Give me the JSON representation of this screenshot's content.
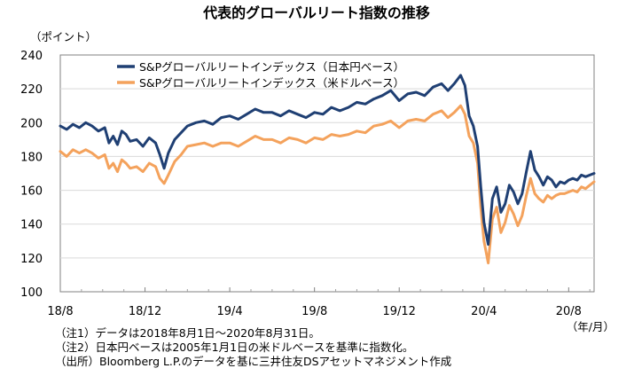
{
  "chart_data": {
    "type": "line",
    "title": "代表的グローバルリート指数の推移",
    "ylabel": "（ポイント）",
    "xlabel": "（年/月）",
    "ylim": [
      100,
      240
    ],
    "yticks": [
      100,
      120,
      140,
      160,
      180,
      200,
      220,
      240
    ],
    "xlim": [
      0,
      25.2
    ],
    "xticks": [
      {
        "label": "18/8",
        "month": 0
      },
      {
        "label": "18/12",
        "month": 4
      },
      {
        "label": "19/4",
        "month": 8
      },
      {
        "label": "19/8",
        "month": 12
      },
      {
        "label": "19/12",
        "month": 16
      },
      {
        "label": "20/4",
        "month": 20
      },
      {
        "label": "20/8",
        "month": 24
      }
    ],
    "legend_position": "top-left",
    "series": [
      {
        "name": "S&Pグローバルリートインデックス（日本円ベース）",
        "color": "#1f3f73",
        "month": [
          0,
          0.3,
          0.6,
          0.9,
          1.2,
          1.5,
          1.8,
          2.1,
          2.3,
          2.5,
          2.7,
          2.9,
          3.1,
          3.3,
          3.6,
          3.9,
          4.2,
          4.5,
          4.7,
          4.9,
          5.1,
          5.4,
          5.7,
          6.0,
          6.4,
          6.8,
          7.2,
          7.6,
          8.0,
          8.4,
          8.8,
          9.2,
          9.6,
          10.0,
          10.4,
          10.8,
          11.2,
          11.6,
          12.0,
          12.4,
          12.8,
          13.2,
          13.6,
          14.0,
          14.4,
          14.8,
          15.2,
          15.6,
          16.0,
          16.4,
          16.8,
          17.2,
          17.6,
          18.0,
          18.3,
          18.6,
          18.9,
          19.1,
          19.3,
          19.5,
          19.7,
          19.85,
          20.0,
          20.2,
          20.4,
          20.6,
          20.8,
          21.0,
          21.2,
          21.4,
          21.6,
          21.8,
          22.0,
          22.2,
          22.4,
          22.6,
          22.8,
          23.0,
          23.2,
          23.4,
          23.6,
          23.8,
          24.0,
          24.2,
          24.4,
          24.6,
          24.8,
          25.0,
          25.2
        ],
        "values": [
          198,
          196,
          199,
          197,
          200,
          198,
          195,
          197,
          188,
          192,
          187,
          195,
          193,
          189,
          190,
          186,
          191,
          188,
          181,
          173,
          182,
          190,
          194,
          198,
          200,
          201,
          199,
          203,
          204,
          202,
          205,
          208,
          206,
          206,
          204,
          207,
          205,
          203,
          206,
          205,
          209,
          207,
          209,
          212,
          211,
          214,
          216,
          219,
          213,
          217,
          218,
          216,
          221,
          223,
          219,
          223,
          228,
          222,
          204,
          198,
          186,
          162,
          141,
          128,
          155,
          162,
          147,
          152,
          163,
          159,
          152,
          158,
          171,
          183,
          172,
          168,
          163,
          168,
          166,
          162,
          165,
          164,
          166,
          167,
          166,
          169,
          168,
          169,
          170
        ]
      },
      {
        "name": "S&Pグローバルリートインデックス（米ドルベース）",
        "color": "#f4a25c",
        "month": [
          0,
          0.3,
          0.6,
          0.9,
          1.2,
          1.5,
          1.8,
          2.1,
          2.3,
          2.5,
          2.7,
          2.9,
          3.1,
          3.3,
          3.6,
          3.9,
          4.2,
          4.5,
          4.7,
          4.9,
          5.1,
          5.4,
          5.7,
          6.0,
          6.4,
          6.8,
          7.2,
          7.6,
          8.0,
          8.4,
          8.8,
          9.2,
          9.6,
          10.0,
          10.4,
          10.8,
          11.2,
          11.6,
          12.0,
          12.4,
          12.8,
          13.2,
          13.6,
          14.0,
          14.4,
          14.8,
          15.2,
          15.6,
          16.0,
          16.4,
          16.8,
          17.2,
          17.6,
          18.0,
          18.3,
          18.6,
          18.9,
          19.1,
          19.3,
          19.5,
          19.7,
          19.85,
          20.0,
          20.2,
          20.4,
          20.6,
          20.8,
          21.0,
          21.2,
          21.4,
          21.6,
          21.8,
          22.0,
          22.2,
          22.4,
          22.6,
          22.8,
          23.0,
          23.2,
          23.4,
          23.6,
          23.8,
          24.0,
          24.2,
          24.4,
          24.6,
          24.8,
          25.0,
          25.2
        ],
        "values": [
          183,
          180,
          184,
          182,
          184,
          182,
          179,
          181,
          173,
          176,
          171,
          178,
          176,
          173,
          174,
          171,
          176,
          174,
          167,
          164,
          169,
          177,
          181,
          186,
          187,
          188,
          186,
          188,
          188,
          186,
          189,
          192,
          190,
          190,
          188,
          191,
          190,
          188,
          191,
          190,
          193,
          192,
          193,
          195,
          194,
          198,
          199,
          201,
          197,
          201,
          202,
          201,
          205,
          207,
          203,
          206,
          210,
          205,
          192,
          188,
          176,
          150,
          130,
          117,
          143,
          150,
          135,
          141,
          151,
          146,
          139,
          145,
          157,
          167,
          158,
          155,
          153,
          157,
          155,
          157,
          158,
          158,
          159,
          160,
          159,
          162,
          161,
          163,
          165
        ]
      }
    ],
    "notes": [
      "（注1）データは2018年8月1日～2020年8月31日。",
      "（注2）日本円ベースは2005年1月1日の米ドルベースを基準に指数化。",
      "（出所）Bloomberg L.P.のデータを基に三井住友DSアセットマネジメント作成"
    ]
  }
}
